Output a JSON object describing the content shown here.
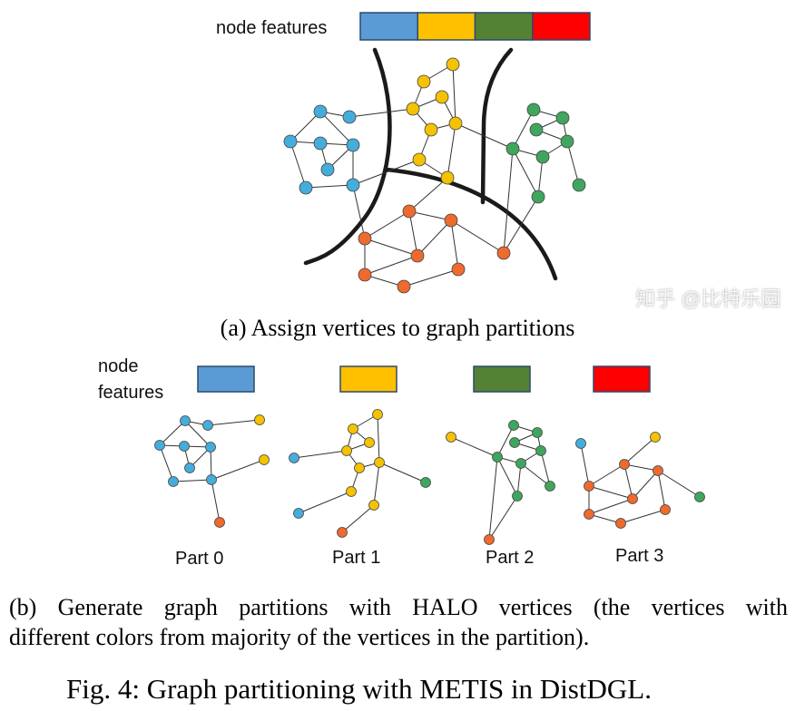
{
  "figure": {
    "panel_a": {
      "legend_label": "node features",
      "feature_colors": [
        "#5B9BD5",
        "#FFC000",
        "#548235",
        "#FF0000"
      ],
      "caption": "(a) Assign vertices to graph partitions"
    },
    "panel_b": {
      "legend_label_line1": "node",
      "legend_label_line2": "features",
      "feature_colors": [
        "#5B9BD5",
        "#FFC000",
        "#548235",
        "#FF0000"
      ],
      "parts": [
        "Part 0",
        "Part 1",
        "Part 2",
        "Part 3"
      ],
      "caption_line1": "(b) Generate graph partitions with HALO vertices (the vertices with",
      "caption_line2": "different colors from majority of the vertices in the partition)."
    },
    "caption": "Fig. 4: Graph partitioning with METIS in DistDGL.",
    "watermark": "知乎 @比特乐园"
  },
  "node_colors": {
    "blue": "#45ADDB",
    "yellow": "#F5C200",
    "green": "#3FA65E",
    "orange": "#EE6A2E"
  }
}
